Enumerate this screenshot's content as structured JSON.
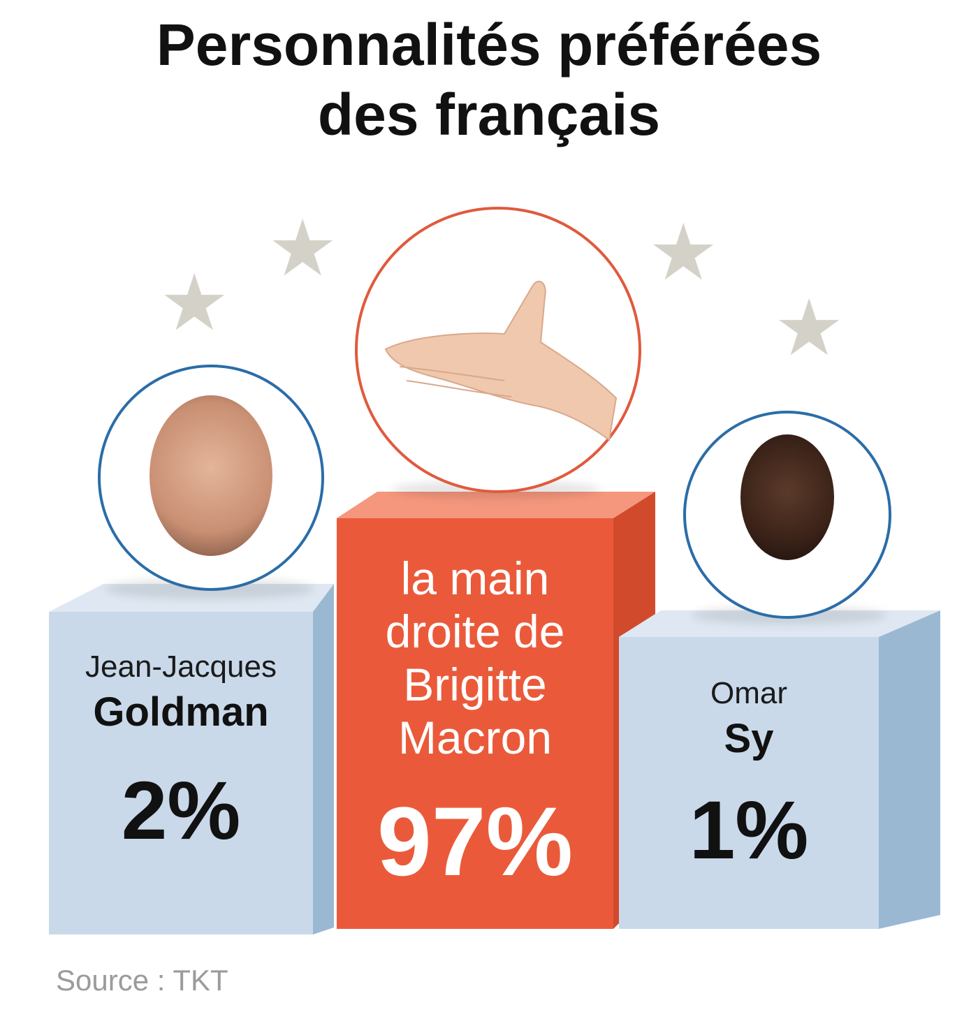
{
  "title": {
    "line1": "Personnalités préférées",
    "line2": "des français"
  },
  "podium": {
    "first": {
      "name_lines": [
        "la main",
        "droite de",
        "Brigitte",
        "Macron"
      ],
      "percent": "97%",
      "value": 97,
      "color": "#ea5a3a",
      "ring_color": "#e05a3e"
    },
    "second": {
      "first_name": "Jean-Jacques",
      "last_name": "Goldman",
      "percent": "2%",
      "value": 2,
      "color": "#c9d9ea",
      "ring_color": "#2a6da8"
    },
    "third": {
      "first_name": "Omar",
      "last_name": "Sy",
      "percent": "1%",
      "value": 1,
      "color": "#c9d9ea",
      "ring_color": "#2a6da8"
    }
  },
  "source": "Source : TKT",
  "icons": [
    "star-icon",
    "hand-icon",
    "portrait-icon"
  ]
}
